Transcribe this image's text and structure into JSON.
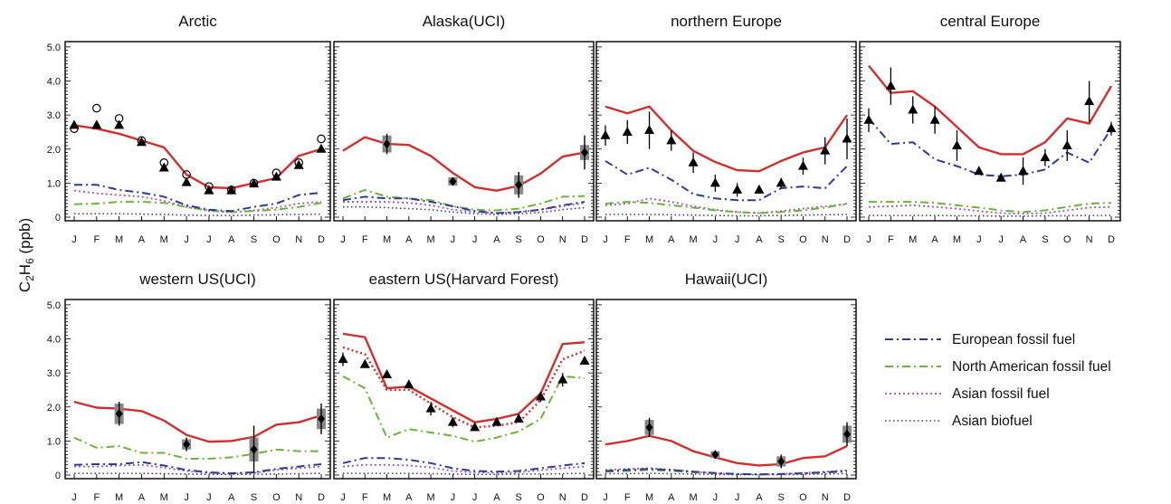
{
  "figure": {
    "ylabel_main": "C",
    "ylabel_sub": "2",
    "ylabel_mid": "H",
    "ylabel_sub2": "6",
    "ylabel_unit": " (ppb)"
  },
  "months": [
    "J",
    "F",
    "M",
    "A",
    "M",
    "J",
    "J",
    "A",
    "S",
    "O",
    "N",
    "D"
  ],
  "yticks": [
    "0",
    "1.0",
    "2.0",
    "3.0",
    "4.0",
    "5.0"
  ],
  "colors": {
    "model": "#d32e2e",
    "european": "#2e3a9a",
    "north_american": "#6ab43a",
    "asian_ff": "#a552b8",
    "asian_bb": "#3f3a8a",
    "obs": "#000000",
    "obs_box": "#888888"
  },
  "legend": [
    {
      "key": "european",
      "label": "European fossil fuel",
      "style": "dashdot"
    },
    {
      "key": "north_american",
      "label": "North American fossil fuel",
      "style": "dashdot"
    },
    {
      "key": "asian_ff",
      "label": "Asian fossil fuel",
      "style": "dotted"
    },
    {
      "key": "asian_bb",
      "label": "Asian biofuel",
      "style": "dotted"
    }
  ],
  "chart_data": [
    {
      "type": "line",
      "title": "Arctic",
      "ylim": [
        0,
        5
      ],
      "xlabel": "",
      "ylabel": "C2H6 (ppb)",
      "series": [
        {
          "key": "model",
          "values": [
            2.7,
            2.6,
            2.45,
            2.25,
            2.05,
            1.25,
            0.88,
            0.85,
            1.0,
            1.15,
            1.8,
            2.0
          ]
        },
        {
          "key": "european",
          "values": [
            0.95,
            0.95,
            0.8,
            0.72,
            0.6,
            0.35,
            0.22,
            0.18,
            0.3,
            0.4,
            0.65,
            0.72
          ]
        },
        {
          "key": "north_american",
          "values": [
            0.38,
            0.4,
            0.45,
            0.45,
            0.42,
            0.3,
            0.2,
            0.15,
            0.18,
            0.22,
            0.3,
            0.42
          ]
        },
        {
          "key": "asian_ff",
          "values": [
            0.78,
            0.7,
            0.65,
            0.6,
            0.48,
            0.3,
            0.18,
            0.14,
            0.2,
            0.28,
            0.4,
            0.45
          ]
        },
        {
          "key": "asian_bb",
          "values": [
            0.1,
            0.1,
            0.1,
            0.09,
            0.08,
            0.06,
            0.05,
            0.05,
            0.06,
            0.07,
            0.08,
            0.09
          ]
        }
      ],
      "obs_triangles": [
        {
          "m": 1,
          "v": 2.7,
          "err": 0
        },
        {
          "m": 2,
          "v": 2.7,
          "err": 0
        },
        {
          "m": 3,
          "v": 2.7,
          "err": 0
        },
        {
          "m": 4,
          "v": 2.2,
          "err": 0
        },
        {
          "m": 5,
          "v": 1.45,
          "err": 0
        },
        {
          "m": 6,
          "v": 1.02,
          "err": 0
        },
        {
          "m": 7,
          "v": 0.78,
          "err": 0
        },
        {
          "m": 8,
          "v": 0.78,
          "err": 0
        },
        {
          "m": 9,
          "v": 0.98,
          "err": 0
        },
        {
          "m": 10,
          "v": 1.18,
          "err": 0
        },
        {
          "m": 11,
          "v": 1.52,
          "err": 0
        },
        {
          "m": 12,
          "v": 2.0,
          "err": 0
        }
      ],
      "obs_circles": [
        {
          "m": 1,
          "v": 2.6
        },
        {
          "m": 2,
          "v": 3.2
        },
        {
          "m": 3,
          "v": 2.9
        },
        {
          "m": 4,
          "v": 2.25
        },
        {
          "m": 5,
          "v": 1.6
        },
        {
          "m": 6,
          "v": 1.25
        },
        {
          "m": 7,
          "v": 0.9
        },
        {
          "m": 8,
          "v": 0.8
        },
        {
          "m": 9,
          "v": 1.0
        },
        {
          "m": 10,
          "v": 1.3
        },
        {
          "m": 11,
          "v": 1.6
        },
        {
          "m": 12,
          "v": 2.3
        }
      ],
      "obs_diamonds": []
    },
    {
      "type": "line",
      "title": "Alaska(UCI)",
      "ylim": [
        0,
        5
      ],
      "series": [
        {
          "key": "model",
          "values": [
            1.95,
            2.35,
            2.15,
            2.12,
            1.8,
            1.3,
            0.88,
            0.78,
            0.92,
            1.28,
            1.78,
            1.9
          ]
        },
        {
          "key": "european",
          "values": [
            0.5,
            0.6,
            0.55,
            0.55,
            0.45,
            0.32,
            0.18,
            0.12,
            0.15,
            0.22,
            0.35,
            0.45
          ]
        },
        {
          "key": "north_american",
          "values": [
            0.55,
            0.8,
            0.6,
            0.55,
            0.5,
            0.32,
            0.22,
            0.2,
            0.25,
            0.4,
            0.6,
            0.62
          ]
        },
        {
          "key": "asian_ff",
          "values": [
            0.45,
            0.45,
            0.45,
            0.42,
            0.35,
            0.22,
            0.15,
            0.12,
            0.15,
            0.22,
            0.32,
            0.42
          ]
        },
        {
          "key": "asian_bb",
          "values": [
            0.3,
            0.3,
            0.28,
            0.25,
            0.22,
            0.15,
            0.1,
            0.08,
            0.1,
            0.14,
            0.22,
            0.28
          ]
        }
      ],
      "obs_triangles": [],
      "obs_circles": [],
      "obs_diamonds": [
        {
          "m": 3,
          "v": 2.15,
          "err": 0.3,
          "box": 0.25
        },
        {
          "m": 6,
          "v": 1.05,
          "err": 0.12,
          "box": 0.12
        },
        {
          "m": 9,
          "v": 0.95,
          "err": 0.38,
          "box": 0.28
        },
        {
          "m": 12,
          "v": 1.9,
          "err": 0.5,
          "box": 0.22
        }
      ]
    },
    {
      "type": "line",
      "title": "northern Europe",
      "ylim": [
        0,
        5
      ],
      "series": [
        {
          "key": "model",
          "values": [
            3.25,
            3.05,
            3.25,
            2.55,
            1.95,
            1.62,
            1.38,
            1.35,
            1.65,
            1.9,
            2.05,
            3.0
          ]
        },
        {
          "key": "european",
          "values": [
            1.65,
            1.25,
            1.45,
            1.1,
            0.68,
            0.55,
            0.5,
            0.5,
            0.85,
            0.9,
            0.85,
            1.5
          ]
        },
        {
          "key": "north_american",
          "values": [
            0.4,
            0.45,
            0.42,
            0.35,
            0.28,
            0.2,
            0.15,
            0.12,
            0.15,
            0.2,
            0.28,
            0.4
          ]
        },
        {
          "key": "asian_ff",
          "values": [
            0.35,
            0.4,
            0.55,
            0.45,
            0.32,
            0.22,
            0.15,
            0.12,
            0.18,
            0.25,
            0.32,
            0.38
          ]
        },
        {
          "key": "asian_bb",
          "values": [
            0.08,
            0.08,
            0.08,
            0.07,
            0.06,
            0.05,
            0.04,
            0.04,
            0.05,
            0.06,
            0.07,
            0.08
          ]
        }
      ],
      "obs_triangles": [
        {
          "m": 1,
          "v": 2.4,
          "err": 0.3
        },
        {
          "m": 2,
          "v": 2.5,
          "err": 0.35
        },
        {
          "m": 3,
          "v": 2.55,
          "err": 0.55
        },
        {
          "m": 4,
          "v": 2.25,
          "err": 0.3
        },
        {
          "m": 5,
          "v": 1.6,
          "err": 0.3
        },
        {
          "m": 6,
          "v": 1.0,
          "err": 0.25
        },
        {
          "m": 7,
          "v": 0.8,
          "err": 0.2
        },
        {
          "m": 8,
          "v": 0.8,
          "err": 0.1
        },
        {
          "m": 9,
          "v": 1.0,
          "err": 0.15
        },
        {
          "m": 10,
          "v": 1.5,
          "err": 0.25
        },
        {
          "m": 11,
          "v": 1.95,
          "err": 0.4
        },
        {
          "m": 12,
          "v": 2.3,
          "err": 0.6
        }
      ],
      "obs_circles": [],
      "obs_diamonds": []
    },
    {
      "type": "line",
      "title": "central Europe",
      "ylim": [
        0,
        5
      ],
      "series": [
        {
          "key": "model",
          "values": [
            4.45,
            3.65,
            3.7,
            3.25,
            2.65,
            2.05,
            1.85,
            1.85,
            2.2,
            2.9,
            2.75,
            3.85
          ]
        },
        {
          "key": "european",
          "values": [
            2.9,
            2.15,
            2.2,
            1.7,
            1.5,
            1.25,
            1.2,
            1.25,
            1.4,
            1.9,
            1.6,
            2.6
          ]
        },
        {
          "key": "north_american",
          "values": [
            0.45,
            0.45,
            0.45,
            0.42,
            0.35,
            0.28,
            0.2,
            0.15,
            0.2,
            0.3,
            0.4,
            0.42
          ]
        },
        {
          "key": "asian_ff",
          "values": [
            0.3,
            0.32,
            0.35,
            0.3,
            0.25,
            0.18,
            0.12,
            0.1,
            0.12,
            0.2,
            0.28,
            0.3
          ]
        },
        {
          "key": "asian_bb",
          "values": [
            0.05,
            0.05,
            0.05,
            0.05,
            0.04,
            0.04,
            0.03,
            0.03,
            0.04,
            0.04,
            0.05,
            0.05
          ]
        }
      ],
      "obs_triangles": [
        {
          "m": 1,
          "v": 2.85,
          "err": 0.35
        },
        {
          "m": 2,
          "v": 3.85,
          "err": 0.55
        },
        {
          "m": 3,
          "v": 3.15,
          "err": 0.4
        },
        {
          "m": 4,
          "v": 2.85,
          "err": 0.4
        },
        {
          "m": 5,
          "v": 2.1,
          "err": 0.45
        },
        {
          "m": 6,
          "v": 1.35,
          "err": 0.1
        },
        {
          "m": 7,
          "v": 1.15,
          "err": 0.1
        },
        {
          "m": 8,
          "v": 1.35,
          "err": 0.4
        },
        {
          "m": 9,
          "v": 1.75,
          "err": 0.25
        },
        {
          "m": 10,
          "v": 2.1,
          "err": 0.45
        },
        {
          "m": 11,
          "v": 3.4,
          "err": 0.6
        },
        {
          "m": 12,
          "v": 2.6,
          "err": 0.2
        }
      ],
      "obs_circles": [],
      "obs_diamonds": []
    },
    {
      "type": "line",
      "title": "western US(UCI)",
      "ylim": [
        0,
        5
      ],
      "series": [
        {
          "key": "model",
          "values": [
            2.15,
            1.98,
            1.95,
            1.88,
            1.6,
            1.18,
            0.98,
            1.0,
            1.12,
            1.48,
            1.55,
            1.75
          ]
        },
        {
          "key": "european",
          "values": [
            0.3,
            0.32,
            0.32,
            0.38,
            0.28,
            0.15,
            0.08,
            0.05,
            0.08,
            0.18,
            0.25,
            0.32
          ]
        },
        {
          "key": "north_american",
          "values": [
            1.1,
            0.8,
            0.85,
            0.65,
            0.65,
            0.48,
            0.48,
            0.52,
            0.62,
            0.75,
            0.7,
            0.7
          ]
        },
        {
          "key": "asian_ff",
          "values": [
            0.25,
            0.25,
            0.28,
            0.3,
            0.22,
            0.12,
            0.06,
            0.04,
            0.06,
            0.15,
            0.2,
            0.25
          ]
        },
        {
          "key": "asian_bb",
          "values": [
            0.05,
            0.05,
            0.05,
            0.05,
            0.04,
            0.03,
            0.02,
            0.02,
            0.02,
            0.03,
            0.04,
            0.05
          ]
        }
      ],
      "obs_triangles": [],
      "obs_circles": [],
      "obs_diamonds": [
        {
          "m": 3,
          "v": 1.8,
          "err": 0.35,
          "box": 0.3
        },
        {
          "m": 6,
          "v": 0.9,
          "err": 0.2,
          "box": 0.15
        },
        {
          "m": 9,
          "v": 0.75,
          "err": 0.7,
          "box": 0.35
        },
        {
          "m": 12,
          "v": 1.65,
          "err": 0.45,
          "box": 0.3
        }
      ]
    },
    {
      "type": "line",
      "title": "eastern US(Harvard Forest)",
      "ylim": [
        0,
        5
      ],
      "series": [
        {
          "key": "model",
          "values": [
            4.15,
            4.05,
            2.55,
            2.6,
            2.25,
            1.9,
            1.55,
            1.65,
            1.8,
            2.4,
            3.85,
            3.9
          ]
        },
        {
          "key": "asian_ff_like",
          "hidden": true,
          "values": []
        },
        {
          "key": "model_dotted",
          "values": [
            3.75,
            3.55,
            2.5,
            2.5,
            2.1,
            1.7,
            1.4,
            1.45,
            1.55,
            2.2,
            3.4,
            3.65
          ]
        },
        {
          "key": "north_american",
          "values": [
            2.9,
            2.55,
            1.1,
            1.35,
            1.25,
            1.15,
            0.98,
            1.1,
            1.28,
            1.65,
            2.9,
            2.85
          ]
        },
        {
          "key": "european",
          "values": [
            0.35,
            0.5,
            0.5,
            0.45,
            0.35,
            0.2,
            0.12,
            0.1,
            0.12,
            0.2,
            0.28,
            0.35
          ]
        },
        {
          "key": "asian_ff",
          "values": [
            0.25,
            0.3,
            0.3,
            0.28,
            0.22,
            0.12,
            0.08,
            0.06,
            0.08,
            0.14,
            0.2,
            0.25
          ]
        },
        {
          "key": "asian_bb",
          "values": [
            0.05,
            0.05,
            0.05,
            0.05,
            0.04,
            0.03,
            0.02,
            0.02,
            0.03,
            0.03,
            0.04,
            0.05
          ]
        }
      ],
      "obs_triangles": [
        {
          "m": 1,
          "v": 3.4,
          "err": 0.2
        },
        {
          "m": 2,
          "v": 3.25,
          "err": 0
        },
        {
          "m": 3,
          "v": 2.95,
          "err": 0
        },
        {
          "m": 4,
          "v": 2.65,
          "err": 0
        },
        {
          "m": 5,
          "v": 1.95,
          "err": 0.2
        },
        {
          "m": 6,
          "v": 1.55,
          "err": 0.15
        },
        {
          "m": 7,
          "v": 1.4,
          "err": 0.1
        },
        {
          "m": 8,
          "v": 1.55,
          "err": 0
        },
        {
          "m": 9,
          "v": 1.65,
          "err": 0.1
        },
        {
          "m": 10,
          "v": 2.3,
          "err": 0.15
        },
        {
          "m": 11,
          "v": 2.8,
          "err": 0.2
        },
        {
          "m": 12,
          "v": 3.35,
          "err": 0
        }
      ],
      "obs_circles": [],
      "obs_diamonds": []
    },
    {
      "type": "line",
      "title": "Hawaii(UCI)",
      "ylim": [
        0,
        5
      ],
      "series": [
        {
          "key": "model",
          "values": [
            0.9,
            1.0,
            1.15,
            1.0,
            0.7,
            0.52,
            0.35,
            0.28,
            0.32,
            0.5,
            0.55,
            0.85
          ]
        },
        {
          "key": "european",
          "values": [
            0.12,
            0.15,
            0.18,
            0.15,
            0.1,
            0.06,
            0.03,
            0.02,
            0.03,
            0.05,
            0.08,
            0.12
          ]
        },
        {
          "key": "north_american",
          "values": [
            0.1,
            0.12,
            0.15,
            0.12,
            0.08,
            0.05,
            0.03,
            0.02,
            0.03,
            0.05,
            0.07,
            0.1
          ]
        },
        {
          "key": "asian_ff",
          "values": [
            0.15,
            0.18,
            0.2,
            0.16,
            0.1,
            0.05,
            0.03,
            0.02,
            0.03,
            0.06,
            0.1,
            0.14
          ]
        },
        {
          "key": "asian_bb",
          "values": [
            0.04,
            0.04,
            0.05,
            0.04,
            0.03,
            0.02,
            0.01,
            0.01,
            0.01,
            0.02,
            0.03,
            0.04
          ]
        }
      ],
      "obs_triangles": [],
      "obs_circles": [],
      "obs_diamonds": [
        {
          "m": 3,
          "v": 1.4,
          "err": 0.28,
          "box": 0.22
        },
        {
          "m": 6,
          "v": 0.6,
          "err": 0.12,
          "box": 0.1
        },
        {
          "m": 9,
          "v": 0.4,
          "err": 0.2,
          "box": 0.15
        },
        {
          "m": 12,
          "v": 1.2,
          "err": 0.35,
          "box": 0.25
        }
      ]
    }
  ]
}
